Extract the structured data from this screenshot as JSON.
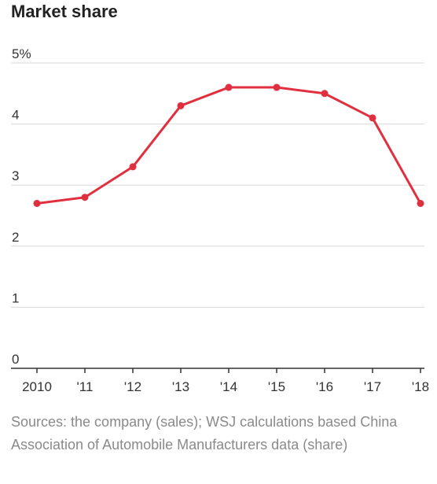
{
  "title": "Market share",
  "source": "Sources: the company (sales); WSJ calculations based China Association of Automobile Manufacturers data (share)",
  "colors": {
    "line": "#e0303f",
    "grid": "#d8d8d8",
    "axis": "#333333",
    "text": "#333333",
    "note": "#8a8a8a"
  },
  "chart_data": {
    "type": "line",
    "title": "Market share",
    "xlabel": "",
    "ylabel": "",
    "categories": [
      "2010",
      "'11",
      "'12",
      "'13",
      "'14",
      "'15",
      "'16",
      "'17",
      "'18"
    ],
    "y_ticks": [
      0,
      1,
      2,
      3,
      4,
      5
    ],
    "y_tick_labels": [
      "0",
      "1",
      "2",
      "3",
      "4",
      "5%"
    ],
    "ylim": [
      0,
      5
    ],
    "grid": true,
    "legend": "none",
    "series": [
      {
        "values": [
          2.7,
          2.8,
          3.3,
          4.3,
          4.6,
          4.6,
          4.5,
          4.1,
          2.7
        ]
      }
    ]
  }
}
